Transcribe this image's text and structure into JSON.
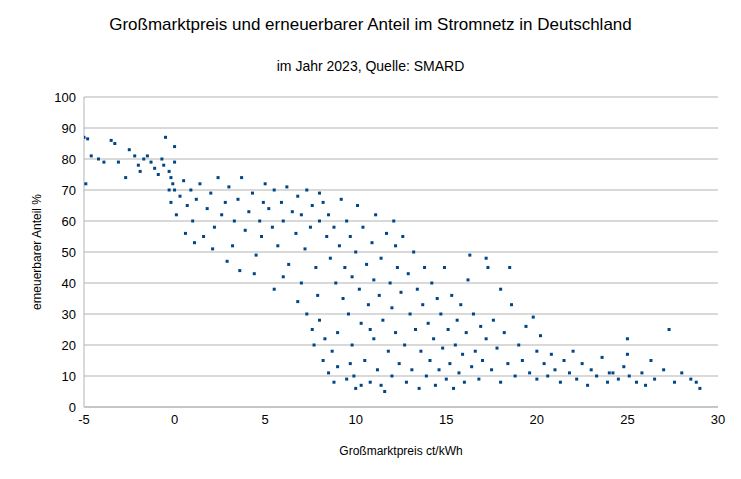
{
  "chart_data": {
    "type": "scatter",
    "title": "Großmarktpreis und erneuerbarer Anteil im Stromnetz in Deutschland",
    "subtitle": "im Jahr 2023, Quelle: SMARD",
    "x_label": "Großmarktpreis ct/kWh",
    "y_label": "erneuerbarer Anteil %",
    "color": "#004586",
    "marker": "square",
    "grid": true,
    "xlim": [
      -5,
      30
    ],
    "xticks": [
      -5,
      0,
      5,
      10,
      15,
      20,
      25,
      30
    ],
    "ylim": [
      0,
      100
    ],
    "yticks": [
      0,
      10,
      20,
      30,
      40,
      50,
      60,
      70,
      80,
      90,
      100
    ],
    "x": [
      -5,
      -4.8,
      -4.9,
      -4.6,
      -4.2,
      -3.9,
      -3.5,
      -3.3,
      -3.1,
      -2.7,
      -2.5,
      -2.2,
      -2,
      -1.9,
      -1.7,
      -1.5,
      -1.3,
      -1.1,
      -0.9,
      -0.7,
      -0.6,
      -0.5,
      -0.3,
      -0.2,
      -0.1,
      0,
      0,
      0,
      -0.3,
      -0.2,
      0.1,
      0.3,
      0.5,
      0.7,
      0.9,
      1,
      1.2,
      1.4,
      1.6,
      1.8,
      2,
      2.2,
      2.4,
      2.6,
      2.8,
      3,
      3.2,
      3.3,
      3.5,
      3.7,
      3.9,
      4.1,
      4.3,
      4.5,
      4.7,
      4.9,
      5,
      0.6,
      1.1,
      2.1,
      2.9,
      3.6,
      4.4,
      4.8,
      5.2,
      5.4,
      5.5,
      5.7,
      5.9,
      6,
      6.2,
      6.3,
      6.5,
      6.7,
      6.8,
      7,
      7,
      7.2,
      7.3,
      7.5,
      7.6,
      7.8,
      7.9,
      8,
      8,
      5.5,
      6,
      6.8,
      7.3,
      7.6,
      7.7,
      8,
      8.2,
      8.3,
      8.5,
      8.7,
      8.8,
      9,
      9,
      8.2,
      8.4,
      8.5,
      8.6,
      8.8,
      8.9,
      9.1,
      9.2,
      9.3,
      9.4,
      9.5,
      9.6,
      9.7,
      9.8,
      9.8,
      9.9,
      10,
      10,
      10.1,
      10.2,
      10.3,
      10.4,
      10.5,
      10.6,
      10.7,
      10.8,
      10.9,
      11,
      11,
      11.1,
      11.2,
      11.3,
      11.4,
      11.5,
      11.6,
      11.7,
      11.8,
      11.9,
      12,
      12,
      12.1,
      12.2,
      12.3,
      12.4,
      12.5,
      9.5,
      9.7,
      10.3,
      10.8,
      11.4,
      12.2,
      12.6,
      12.7,
      12.8,
      12.9,
      13,
      13.1,
      13.2,
      13.3,
      13.4,
      13.5,
      13.6,
      13.7,
      13.8,
      13.9,
      14,
      14.1,
      14.2,
      14.3,
      14.4,
      14.5,
      14.6,
      14.7,
      14.8,
      14.9,
      15,
      15.1,
      15.2,
      15.3,
      15.4,
      15.5,
      15.6,
      15.7,
      15.8,
      15.9,
      16,
      16.1,
      16.2,
      16.4,
      16.5,
      16.6,
      16.8,
      16.9,
      17,
      17.2,
      17.3,
      17.5,
      17.6,
      17.8,
      18,
      18.2,
      18.4,
      18.6,
      18.8,
      19,
      19.2,
      19.4,
      19.6,
      19.8,
      20,
      20,
      20.2,
      16.3,
      18,
      18.5,
      17.2,
      20.4,
      20.6,
      20.8,
      21,
      21.3,
      21.5,
      21.8,
      22,
      22.2,
      22.5,
      22.8,
      23,
      23.3,
      23.6,
      23.9,
      24.2,
      24.5,
      24.8,
      25,
      25,
      25.1,
      25.5,
      25.8,
      26,
      26.3,
      26.5,
      27,
      27.3,
      27.6,
      28,
      28.5,
      28.8,
      29,
      24
    ],
    "values": [
      87,
      86.5,
      72,
      81,
      80,
      79,
      86,
      85,
      79,
      74,
      83,
      81,
      78,
      76,
      80,
      81,
      79,
      77,
      75,
      80,
      78,
      87,
      76,
      74,
      72,
      79,
      84,
      70,
      70,
      66,
      62,
      68,
      73,
      65,
      70,
      60,
      67,
      72,
      55,
      64,
      69,
      58,
      74,
      62,
      66,
      71,
      52,
      60,
      67,
      74,
      57,
      63,
      69,
      49,
      60,
      66,
      72,
      56,
      53,
      51,
      47,
      44,
      43,
      55,
      64,
      58,
      70,
      52,
      66,
      60,
      71,
      46,
      63,
      56,
      68,
      40,
      62,
      51,
      70,
      58,
      65,
      45,
      36,
      60,
      69,
      38,
      42,
      34,
      30,
      25,
      20,
      28,
      15,
      22,
      11,
      18,
      8,
      13,
      24,
      66,
      55,
      62,
      48,
      58,
      40,
      52,
      67,
      35,
      45,
      60,
      30,
      55,
      20,
      42,
      10,
      6,
      50,
      65,
      38,
      27,
      58,
      15,
      46,
      33,
      8,
      53,
      22,
      41,
      62,
      12,
      36,
      48,
      28,
      5,
      56,
      18,
      40,
      32,
      10,
      60,
      24,
      45,
      14,
      37,
      9,
      14,
      7,
      25,
      7,
      52,
      55,
      20,
      8,
      43,
      30,
      12,
      50,
      25,
      38,
      6,
      18,
      33,
      45,
      10,
      27,
      15,
      40,
      22,
      7,
      35,
      12,
      30,
      19,
      45,
      9,
      25,
      14,
      36,
      6,
      20,
      28,
      11,
      33,
      17,
      8,
      24,
      41,
      13,
      30,
      18,
      9,
      26,
      15,
      22,
      45,
      12,
      28,
      19,
      8,
      24,
      14,
      33,
      10,
      20,
      15,
      26,
      11,
      29,
      18,
      9,
      23,
      49,
      38,
      45,
      48,
      14,
      10,
      17,
      12,
      8,
      15,
      11,
      18,
      9,
      14,
      7,
      12,
      10,
      16,
      8,
      11,
      9,
      13,
      22,
      17,
      10,
      8,
      11,
      7,
      15,
      9,
      12,
      25,
      8,
      11,
      9,
      8,
      6,
      11
    ]
  }
}
